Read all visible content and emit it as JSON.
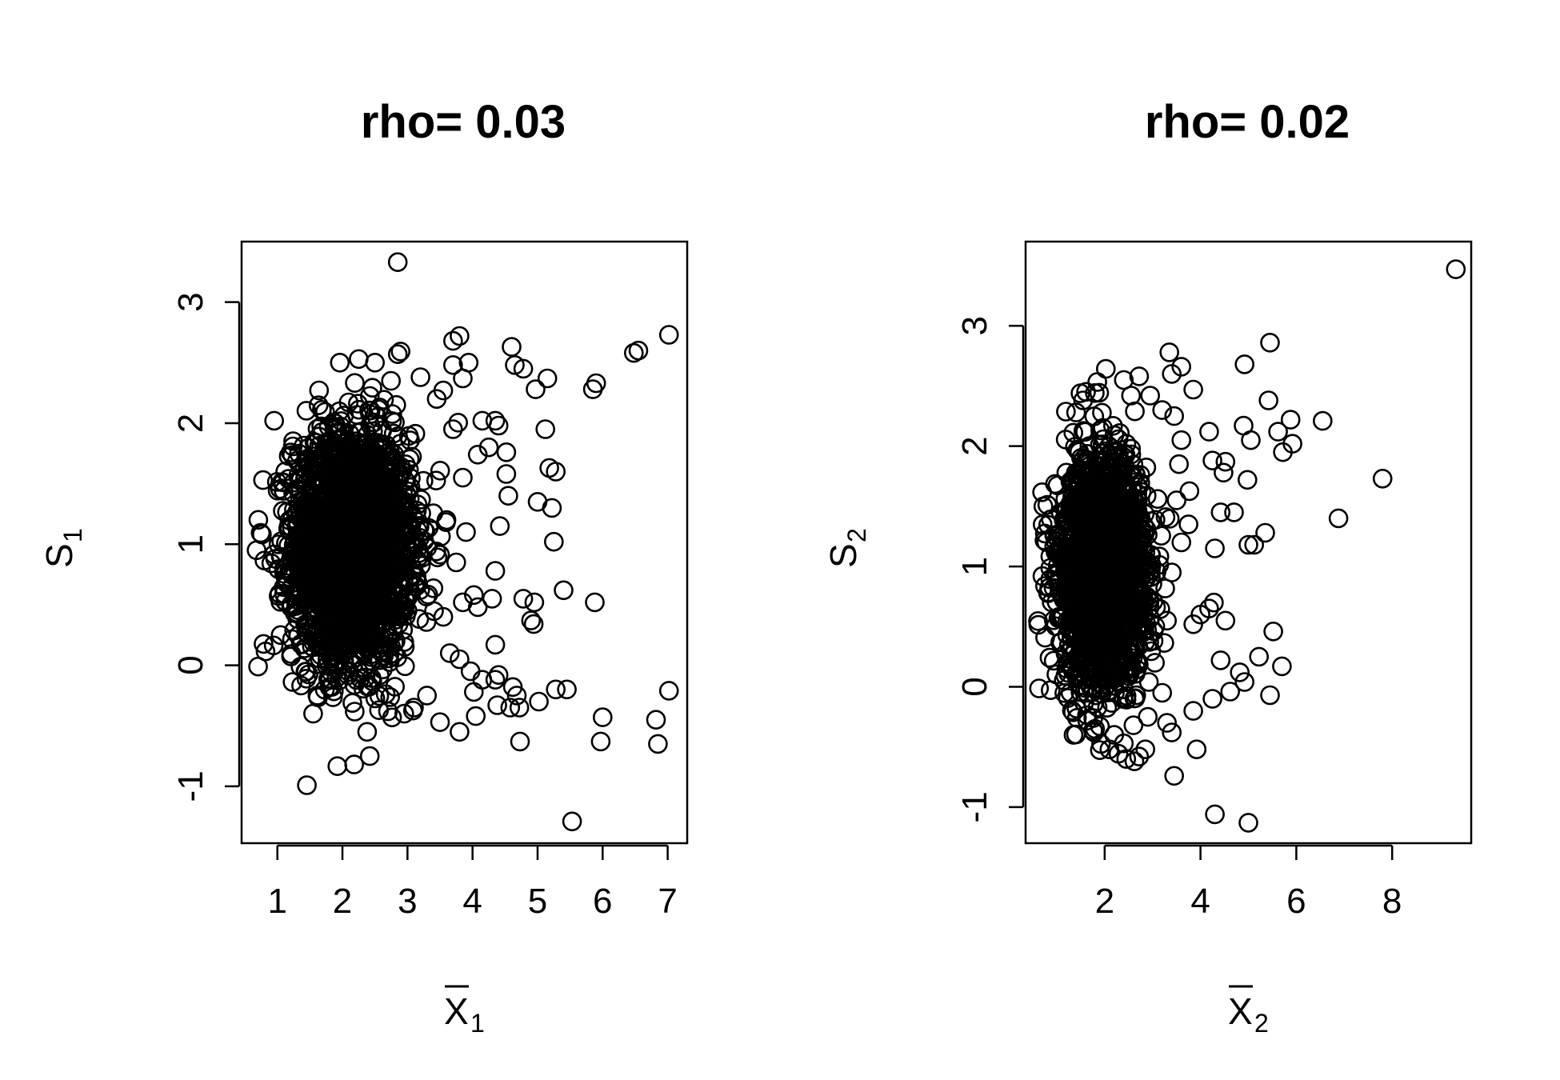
{
  "chart_data": [
    {
      "type": "scatter",
      "title": "rho= 0.03",
      "xlabel": {
        "main": "X",
        "overbar": true,
        "subscript": "1"
      },
      "ylabel": {
        "main": "S",
        "subscript": "1"
      },
      "xlim": [
        0.45,
        7.3
      ],
      "ylim": [
        -1.47,
        3.5
      ],
      "xticks": [
        1,
        2,
        3,
        4,
        5,
        6,
        7
      ],
      "yticks": [
        -1,
        0,
        1,
        2,
        3
      ],
      "grid": false,
      "legend": "none",
      "bulk": {
        "count": 2600,
        "x_center": 2.15,
        "x_spread": 0.45,
        "y_center": 0.98,
        "y_spread": 0.47
      },
      "points": [
        [
          2.85,
          3.33
        ],
        [
          3.8,
          2.72
        ],
        [
          3.7,
          2.68
        ],
        [
          4.6,
          2.63
        ],
        [
          4.65,
          2.48
        ],
        [
          4.78,
          2.45
        ],
        [
          5.15,
          2.37
        ],
        [
          4.97,
          2.28
        ],
        [
          5.9,
          2.33
        ],
        [
          5.85,
          2.28
        ],
        [
          6.48,
          2.58
        ],
        [
          6.55,
          2.6
        ],
        [
          7.02,
          2.73
        ],
        [
          3.94,
          2.5
        ],
        [
          4.15,
          2.02
        ],
        [
          4.35,
          2.02
        ],
        [
          4.4,
          1.98
        ],
        [
          4.25,
          1.8
        ],
        [
          4.08,
          1.74
        ],
        [
          4.52,
          1.76
        ],
        [
          4.52,
          1.58
        ],
        [
          5.12,
          1.95
        ],
        [
          5.18,
          1.63
        ],
        [
          5.28,
          1.6
        ],
        [
          4.55,
          1.4
        ],
        [
          5.0,
          1.35
        ],
        [
          5.22,
          1.3
        ],
        [
          4.42,
          1.15
        ],
        [
          5.25,
          1.02
        ],
        [
          4.35,
          0.78
        ],
        [
          4.3,
          0.55
        ],
        [
          4.02,
          0.58
        ],
        [
          3.85,
          0.52
        ],
        [
          4.08,
          0.48
        ],
        [
          4.78,
          0.55
        ],
        [
          4.95,
          0.52
        ],
        [
          4.9,
          0.37
        ],
        [
          4.94,
          0.34
        ],
        [
          5.4,
          0.62
        ],
        [
          5.88,
          0.52
        ],
        [
          4.35,
          0.17
        ],
        [
          3.97,
          -0.05
        ],
        [
          4.15,
          -0.12
        ],
        [
          4.35,
          -0.12
        ],
        [
          4.4,
          -0.08
        ],
        [
          4.62,
          -0.18
        ],
        [
          4.68,
          -0.25
        ],
        [
          4.02,
          -0.22
        ],
        [
          4.38,
          -0.33
        ],
        [
          4.58,
          -0.35
        ],
        [
          4.72,
          -0.35
        ],
        [
          5.02,
          -0.3
        ],
        [
          5.28,
          -0.2
        ],
        [
          5.45,
          -0.2
        ],
        [
          6.0,
          -0.43
        ],
        [
          5.97,
          -0.63
        ],
        [
          4.05,
          -0.42
        ],
        [
          3.8,
          -0.55
        ],
        [
          3.5,
          -0.47
        ],
        [
          4.73,
          -0.63
        ],
        [
          6.82,
          -0.45
        ],
        [
          6.85,
          -0.65
        ],
        [
          7.02,
          -0.21
        ],
        [
          5.53,
          -1.29
        ],
        [
          2.18,
          -0.82
        ],
        [
          2.42,
          -0.75
        ],
        [
          2.38,
          -0.55
        ],
        [
          1.55,
          -0.4
        ],
        [
          0.68,
          0.95
        ],
        [
          0.78,
          1.53
        ],
        [
          0.95,
          2.02
        ],
        [
          1.05,
          0.25
        ],
        [
          2.5,
          2.5
        ],
        [
          2.25,
          2.53
        ],
        [
          1.96,
          2.5
        ],
        [
          2.85,
          2.57
        ],
        [
          3.2,
          2.38
        ],
        [
          3.55,
          2.27
        ],
        [
          3.7,
          2.48
        ],
        [
          3.85,
          2.37
        ],
        [
          3.45,
          2.2
        ],
        [
          3.7,
          1.95
        ],
        [
          3.85,
          1.55
        ],
        [
          3.6,
          1.2
        ],
        [
          3.9,
          1.1
        ],
        [
          3.75,
          0.85
        ],
        [
          3.55,
          0.4
        ],
        [
          3.65,
          0.1
        ],
        [
          3.8,
          0.05
        ],
        [
          3.1,
          -0.35
        ],
        [
          2.95,
          -0.4
        ],
        [
          3.3,
          -0.25
        ],
        [
          2.7,
          -0.38
        ]
      ]
    },
    {
      "type": "scatter",
      "title": "rho= 0.02",
      "xlabel": {
        "main": "X",
        "overbar": true,
        "subscript": "2"
      },
      "ylabel": {
        "main": "S",
        "subscript": "2"
      },
      "xlim": [
        0.35,
        9.65
      ],
      "ylim": [
        -1.3,
        3.7
      ],
      "xticks": [
        2,
        4,
        6,
        8
      ],
      "yticks": [
        -1,
        0,
        1,
        2,
        3
      ],
      "grid": false,
      "legend": "none",
      "bulk": {
        "count": 2100,
        "x_center": 1.95,
        "x_spread": 0.45,
        "y_center": 0.95,
        "y_spread": 0.48
      },
      "points": [
        [
          9.33,
          3.47
        ],
        [
          5.45,
          2.86
        ],
        [
          3.35,
          2.78
        ],
        [
          3.6,
          2.66
        ],
        [
          4.92,
          2.68
        ],
        [
          3.4,
          2.6
        ],
        [
          3.85,
          2.47
        ],
        [
          5.42,
          2.38
        ],
        [
          5.88,
          2.22
        ],
        [
          6.55,
          2.21
        ],
        [
          5.62,
          2.12
        ],
        [
          4.9,
          2.17
        ],
        [
          5.05,
          2.05
        ],
        [
          5.92,
          2.02
        ],
        [
          5.72,
          1.95
        ],
        [
          4.18,
          2.12
        ],
        [
          4.25,
          1.88
        ],
        [
          4.52,
          1.87
        ],
        [
          4.48,
          1.78
        ],
        [
          4.98,
          1.72
        ],
        [
          7.8,
          1.73
        ],
        [
          6.88,
          1.4
        ],
        [
          5.35,
          1.28
        ],
        [
          4.42,
          1.45
        ],
        [
          4.7,
          1.45
        ],
        [
          5.0,
          1.18
        ],
        [
          5.12,
          1.18
        ],
        [
          4.3,
          1.15
        ],
        [
          4.52,
          0.55
        ],
        [
          4.18,
          0.65
        ],
        [
          4.0,
          0.6
        ],
        [
          3.85,
          0.52
        ],
        [
          4.28,
          0.7
        ],
        [
          5.52,
          0.46
        ],
        [
          5.22,
          0.25
        ],
        [
          5.7,
          0.17
        ],
        [
          4.82,
          0.12
        ],
        [
          4.92,
          0.04
        ],
        [
          5.45,
          -0.07
        ],
        [
          4.42,
          0.22
        ],
        [
          4.62,
          -0.04
        ],
        [
          4.25,
          -0.1
        ],
        [
          3.85,
          -0.2
        ],
        [
          3.3,
          -0.3
        ],
        [
          3.4,
          -0.38
        ],
        [
          3.92,
          -0.52
        ],
        [
          3.45,
          -0.74
        ],
        [
          4.3,
          -1.06
        ],
        [
          5.0,
          -1.13
        ],
        [
          2.62,
          -0.62
        ],
        [
          2.45,
          -0.6
        ],
        [
          2.72,
          -0.58
        ],
        [
          2.85,
          -0.52
        ],
        [
          2.4,
          -0.47
        ],
        [
          2.1,
          -0.52
        ],
        [
          1.8,
          -0.35
        ],
        [
          1.35,
          -0.4
        ],
        [
          0.7,
          0.92
        ],
        [
          0.72,
          1.5
        ],
        [
          2.4,
          2.55
        ],
        [
          2.55,
          2.42
        ],
        [
          2.72,
          2.58
        ],
        [
          2.95,
          2.42
        ],
        [
          1.55,
          2.38
        ],
        [
          3.2,
          2.3
        ],
        [
          3.45,
          2.25
        ],
        [
          3.6,
          2.05
        ],
        [
          3.55,
          1.85
        ],
        [
          3.5,
          1.55
        ],
        [
          3.75,
          1.35
        ],
        [
          3.6,
          1.2
        ],
        [
          3.4,
          0.95
        ],
        [
          3.3,
          0.55
        ],
        [
          3.05,
          0.2
        ],
        [
          3.2,
          -0.05
        ],
        [
          2.9,
          -0.25
        ],
        [
          2.6,
          -0.32
        ],
        [
          2.2,
          -0.4
        ]
      ]
    }
  ]
}
